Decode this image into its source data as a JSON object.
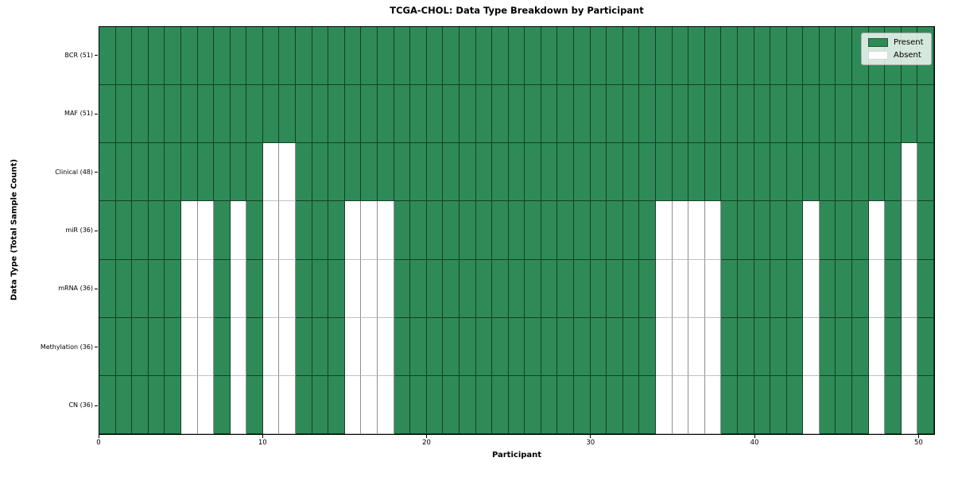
{
  "chart_data": {
    "type": "heatmap",
    "title": "TCGA-CHOL: Data Type Breakdown by Participant",
    "xlabel": "Participant",
    "ylabel": "Data Type (Total Sample Count)",
    "n_participants": 51,
    "x_range": [
      0,
      51
    ],
    "x_ticks": [
      0,
      10,
      20,
      30,
      40,
      50
    ],
    "grid": true,
    "legend_position": "upper-right",
    "colors": {
      "present": "#2e8b57",
      "absent": "#ffffff"
    },
    "legend": [
      {
        "label": "Present",
        "color": "#2e8b57"
      },
      {
        "label": "Absent",
        "color": "#ffffff"
      }
    ],
    "rows": [
      {
        "label": "BCR (51)",
        "data_type": "BCR",
        "total": 51,
        "absent_participants": []
      },
      {
        "label": "MAF (51)",
        "data_type": "MAF",
        "total": 51,
        "absent_participants": []
      },
      {
        "label": "Clinical (48)",
        "data_type": "Clinical",
        "total": 48,
        "absent_participants": [
          10,
          11,
          49
        ]
      },
      {
        "label": "miR (36)",
        "data_type": "miR",
        "total": 36,
        "absent_participants": [
          5,
          6,
          8,
          10,
          11,
          15,
          16,
          17,
          34,
          35,
          36,
          37,
          43,
          47,
          49
        ]
      },
      {
        "label": "mRNA (36)",
        "data_type": "mRNA",
        "total": 36,
        "absent_participants": [
          5,
          6,
          8,
          10,
          11,
          15,
          16,
          17,
          34,
          35,
          36,
          37,
          43,
          47,
          49
        ]
      },
      {
        "label": "Methylation (36)",
        "data_type": "Methylation",
        "total": 36,
        "absent_participants": [
          5,
          6,
          8,
          10,
          11,
          15,
          16,
          17,
          34,
          35,
          36,
          37,
          43,
          47,
          49
        ]
      },
      {
        "label": "CN (36)",
        "data_type": "CN",
        "total": 36,
        "absent_participants": [
          5,
          6,
          8,
          10,
          11,
          15,
          16,
          17,
          34,
          35,
          36,
          37,
          43,
          47,
          49
        ]
      }
    ]
  }
}
